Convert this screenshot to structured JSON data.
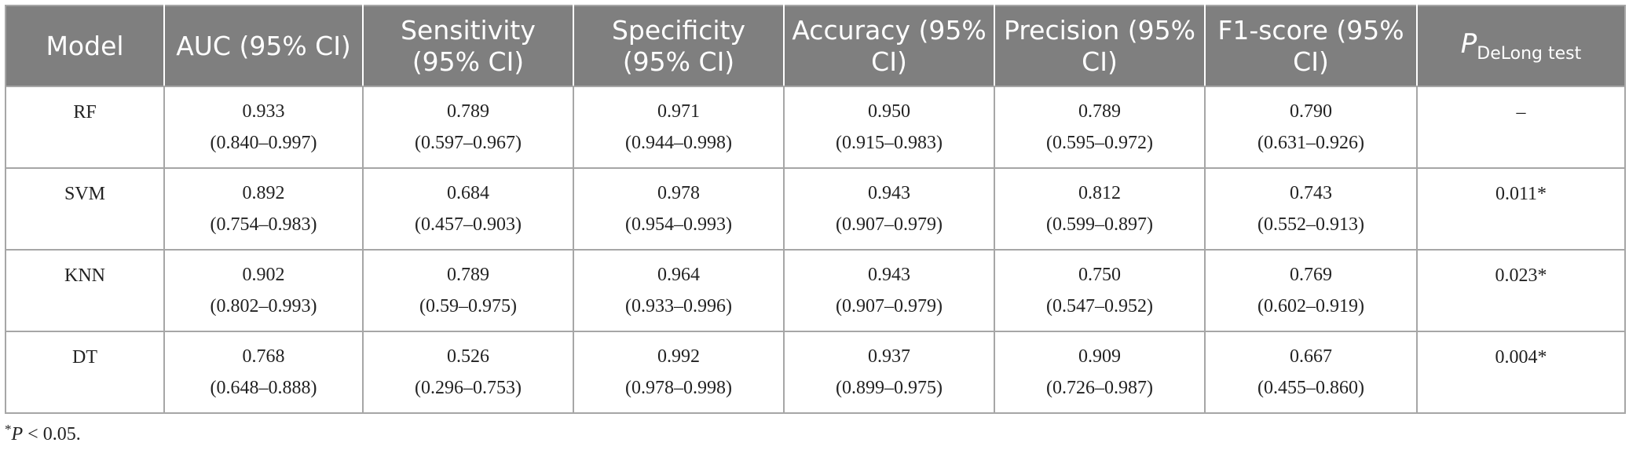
{
  "table": {
    "headers": {
      "model": "Model",
      "auc": "AUC (95% CI)",
      "sensitivity": "Sensitivity (95% CI)",
      "specificity": "Specificity (95% CI)",
      "accuracy": "Accuracy (95% CI)",
      "precision": "Precision (95% CI)",
      "f1": "F1-score (95% CI)",
      "p_main": "P",
      "p_sub": "DeLong test"
    },
    "rows": [
      {
        "model": "RF",
        "auc": {
          "value": "0.933",
          "ci": "(0.840–0.997)"
        },
        "sensitivity": {
          "value": "0.789",
          "ci": "(0.597–0.967)"
        },
        "specificity": {
          "value": "0.971",
          "ci": "(0.944–0.998)"
        },
        "accuracy": {
          "value": "0.950",
          "ci": "(0.915–0.983)"
        },
        "precision": {
          "value": "0.789",
          "ci": "(0.595–0.972)"
        },
        "f1": {
          "value": "0.790",
          "ci": "(0.631–0.926)"
        },
        "p": "–"
      },
      {
        "model": "SVM",
        "auc": {
          "value": "0.892",
          "ci": "(0.754–0.983)"
        },
        "sensitivity": {
          "value": "0.684",
          "ci": "(0.457–0.903)"
        },
        "specificity": {
          "value": "0.978",
          "ci": "(0.954–0.993)"
        },
        "accuracy": {
          "value": "0.943",
          "ci": "(0.907–0.979)"
        },
        "precision": {
          "value": "0.812",
          "ci": "(0.599–0.897)"
        },
        "f1": {
          "value": "0.743",
          "ci": "(0.552–0.913)"
        },
        "p": "0.011*"
      },
      {
        "model": "KNN",
        "auc": {
          "value": "0.902",
          "ci": "(0.802–0.993)"
        },
        "sensitivity": {
          "value": "0.789",
          "ci": "(0.59–0.975)"
        },
        "specificity": {
          "value": "0.964",
          "ci": "(0.933–0.996)"
        },
        "accuracy": {
          "value": "0.943",
          "ci": "(0.907–0.979)"
        },
        "precision": {
          "value": "0.750",
          "ci": "(0.547–0.952)"
        },
        "f1": {
          "value": "0.769",
          "ci": "(0.602–0.919)"
        },
        "p": "0.023*"
      },
      {
        "model": "DT",
        "auc": {
          "value": "0.768",
          "ci": "(0.648–0.888)"
        },
        "sensitivity": {
          "value": "0.526",
          "ci": "(0.296–0.753)"
        },
        "specificity": {
          "value": "0.992",
          "ci": "(0.978–0.998)"
        },
        "accuracy": {
          "value": "0.937",
          "ci": "(0.899–0.975)"
        },
        "precision": {
          "value": "0.909",
          "ci": "(0.726–0.987)"
        },
        "f1": {
          "value": "0.667",
          "ci": "(0.455–0.860)"
        },
        "p": "0.004*"
      }
    ]
  },
  "footnote": {
    "symbol": "*",
    "p_letter": "P",
    "rest": " < 0.05."
  },
  "colors": {
    "header_bg": "#7f7f7f",
    "header_text": "#ffffff",
    "grid": "#a6a6a6",
    "body_text": "#222222"
  }
}
